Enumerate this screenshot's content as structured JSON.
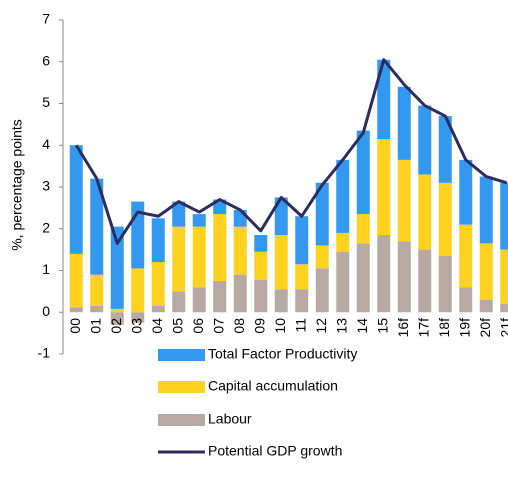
{
  "chart_data": {
    "type": "stacked_bar_line",
    "y_label": "%, percentage points",
    "categories": [
      "00",
      "01",
      "02",
      "03",
      "04",
      "05",
      "06",
      "07",
      "08",
      "09",
      "10",
      "11",
      "12",
      "13",
      "14",
      "15",
      "16f",
      "17f",
      "18f",
      "19f",
      "20f",
      "21f"
    ],
    "series": [
      {
        "name": "Total Factor Productivity",
        "color": "#3399f0",
        "kind": "bar",
        "values": [
          2.6,
          2.3,
          1.97,
          1.6,
          1.05,
          0.6,
          0.3,
          0.35,
          0.4,
          0.4,
          0.9,
          1.15,
          1.5,
          1.75,
          2.0,
          1.9,
          1.75,
          1.65,
          1.6,
          1.55,
          1.6,
          1.6
        ]
      },
      {
        "name": "Capital accumulation",
        "color": "#ffd21f",
        "kind": "bar",
        "values": [
          1.28,
          0.75,
          0.08,
          1.05,
          1.05,
          1.55,
          1.45,
          1.6,
          1.15,
          0.67,
          1.3,
          0.6,
          0.55,
          0.45,
          0.7,
          2.3,
          1.95,
          1.8,
          1.75,
          1.5,
          1.35,
          1.3
        ]
      },
      {
        "name": "Labour",
        "color": "#b7aaa2",
        "kind": "bar",
        "values": [
          0.12,
          0.15,
          -0.3,
          -0.25,
          0.15,
          0.5,
          0.6,
          0.75,
          0.9,
          0.78,
          0.55,
          0.55,
          1.05,
          1.45,
          1.65,
          1.85,
          1.7,
          1.5,
          1.35,
          0.6,
          0.3,
          0.2
        ]
      },
      {
        "name": "Potential GDP growth",
        "color": "#2b2d5e",
        "kind": "line",
        "values": [
          4.0,
          3.2,
          1.65,
          2.4,
          2.3,
          2.65,
          2.4,
          2.7,
          2.45,
          1.95,
          2.75,
          2.3,
          3.05,
          3.65,
          4.3,
          6.05,
          5.45,
          4.95,
          4.7,
          3.65,
          3.25,
          3.1
        ]
      }
    ],
    "ylim": [
      -1,
      7
    ],
    "yticks": [
      -1,
      0,
      1,
      2,
      3,
      4,
      5,
      6,
      7
    ]
  }
}
